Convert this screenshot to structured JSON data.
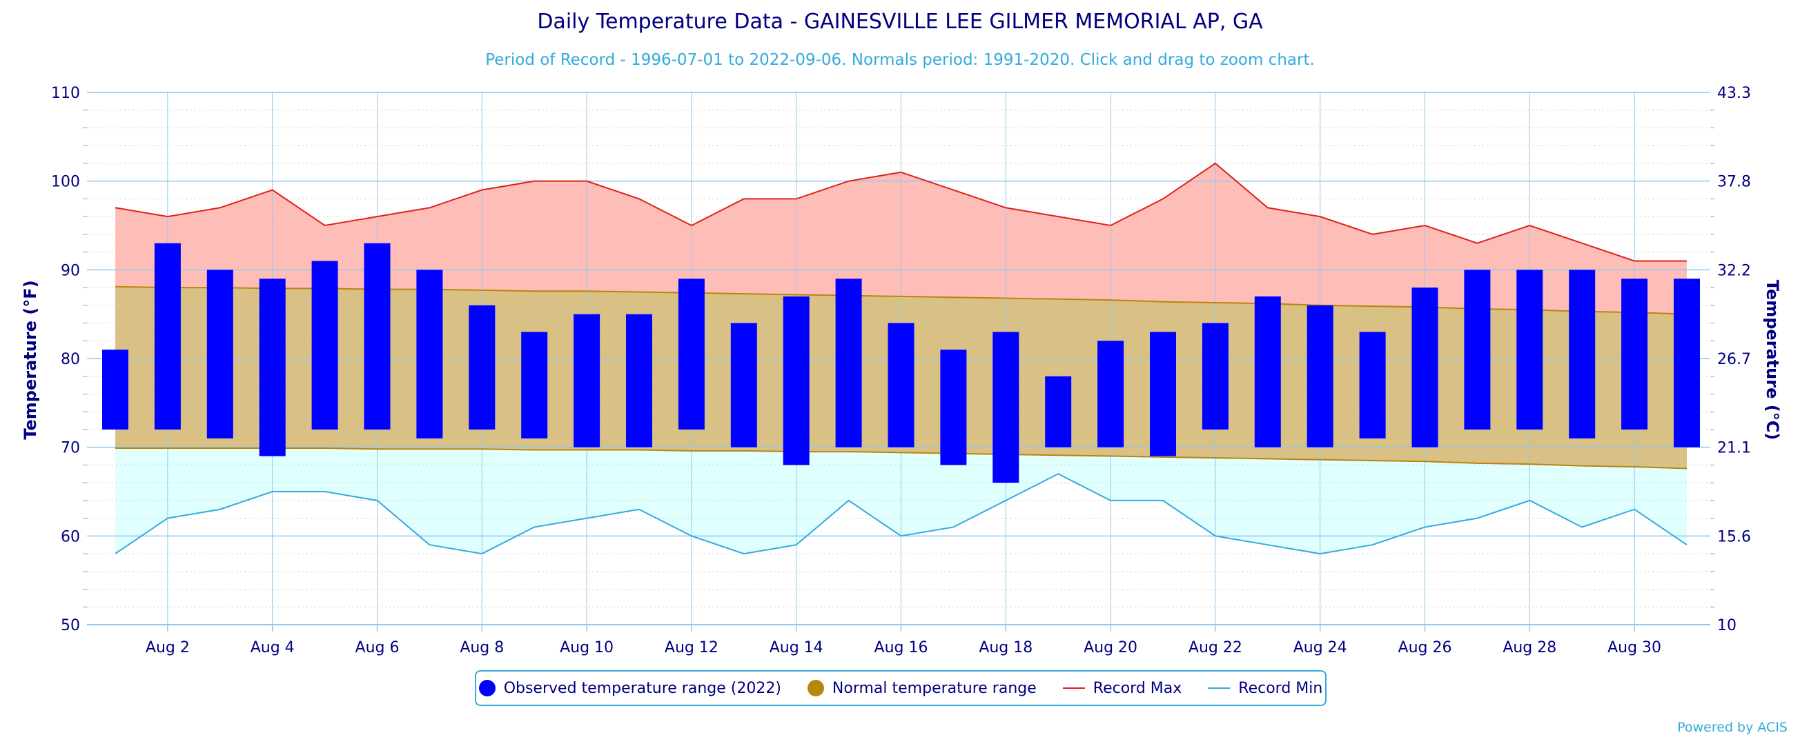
{
  "chart_data": {
    "type": "bar",
    "title": "Daily Temperature Data - GAINESVILLE LEE GILMER MEMORIAL AP, GA",
    "subtitle": "Period of Record - 1996-07-01 to 2022-09-06. Normals period: 1991-2020. Click and drag to zoom chart.",
    "ylabel": "Temperature (°F)",
    "ylabel_right": "Temperature (°C)",
    "ylim": [
      50,
      110
    ],
    "yticks": [
      50,
      60,
      70,
      80,
      90,
      100,
      110
    ],
    "yticks_right": [
      "10",
      "15.6",
      "21.1",
      "26.7",
      "32.2",
      "37.8",
      "43.3"
    ],
    "xlim": [
      1,
      31
    ],
    "xticks": [
      2,
      4,
      6,
      8,
      10,
      12,
      14,
      16,
      18,
      20,
      22,
      24,
      26,
      28,
      30
    ],
    "xtick_labels": [
      "Aug 2",
      "Aug 4",
      "Aug 6",
      "Aug 8",
      "Aug 10",
      "Aug 12",
      "Aug 14",
      "Aug 16",
      "Aug 18",
      "Aug 20",
      "Aug 22",
      "Aug 24",
      "Aug 26",
      "Aug 28",
      "Aug 30"
    ],
    "grid": true,
    "legend_position": "bottom-center",
    "days": [
      1,
      2,
      3,
      4,
      5,
      6,
      7,
      8,
      9,
      10,
      11,
      12,
      13,
      14,
      15,
      16,
      17,
      18,
      19,
      20,
      21,
      22,
      23,
      24,
      25,
      26,
      27,
      28,
      29,
      30,
      31
    ],
    "series": [
      {
        "name": "Observed temperature range (2022)",
        "color": "#0000ff",
        "low": [
          72,
          72,
          71,
          69,
          72,
          72,
          71,
          72,
          71,
          70,
          70,
          72,
          70,
          68,
          70,
          70,
          68,
          66,
          70,
          70,
          69,
          72,
          70,
          70,
          71,
          70,
          72,
          72,
          71,
          72,
          70
        ],
        "high": [
          81,
          93,
          90,
          89,
          91,
          93,
          90,
          86,
          83,
          85,
          85,
          89,
          84,
          87,
          89,
          84,
          81,
          83,
          78,
          82,
          83,
          84,
          87,
          86,
          83,
          88,
          90,
          90,
          90,
          89,
          89
        ]
      },
      {
        "name": "Normal temperature range",
        "color": "#b8860b",
        "low": [
          69.9,
          69.9,
          69.9,
          69.9,
          69.9,
          69.8,
          69.8,
          69.8,
          69.7,
          69.7,
          69.7,
          69.6,
          69.6,
          69.5,
          69.5,
          69.4,
          69.3,
          69.2,
          69.1,
          69.0,
          68.9,
          68.8,
          68.7,
          68.6,
          68.5,
          68.4,
          68.2,
          68.1,
          67.9,
          67.8,
          67.6
        ],
        "high": [
          88.1,
          88.0,
          88.0,
          87.9,
          87.9,
          87.8,
          87.8,
          87.7,
          87.6,
          87.6,
          87.5,
          87.4,
          87.3,
          87.2,
          87.1,
          87.0,
          86.9,
          86.8,
          86.7,
          86.6,
          86.4,
          86.3,
          86.2,
          86.0,
          85.9,
          85.8,
          85.6,
          85.5,
          85.3,
          85.2,
          85.0
        ]
      },
      {
        "name": "Record Max",
        "color": "#e0201a",
        "values": [
          97,
          96,
          97,
          99,
          95,
          96,
          97,
          99,
          100,
          100,
          98,
          95,
          98,
          98,
          100,
          101,
          99,
          97,
          96,
          95,
          98,
          102,
          97,
          96,
          94,
          95,
          93,
          95,
          93,
          91,
          91
        ]
      },
      {
        "name": "Record Min",
        "color": "#33aadd",
        "values": [
          58,
          62,
          63,
          65,
          65,
          64,
          59,
          58,
          61,
          62,
          63,
          60,
          58,
          59,
          64,
          60,
          61,
          64,
          67,
          64,
          64,
          60,
          59,
          58,
          59,
          61,
          62,
          64,
          61,
          63,
          59
        ]
      }
    ],
    "colors": {
      "record_band": "#ffbdb8",
      "normal_band": "#d9c085",
      "min_band": "#e0ffff",
      "grid": "#8fc8ee",
      "axis_text": "#000080"
    }
  },
  "footer": {
    "credit": "Powered by ACIS"
  }
}
